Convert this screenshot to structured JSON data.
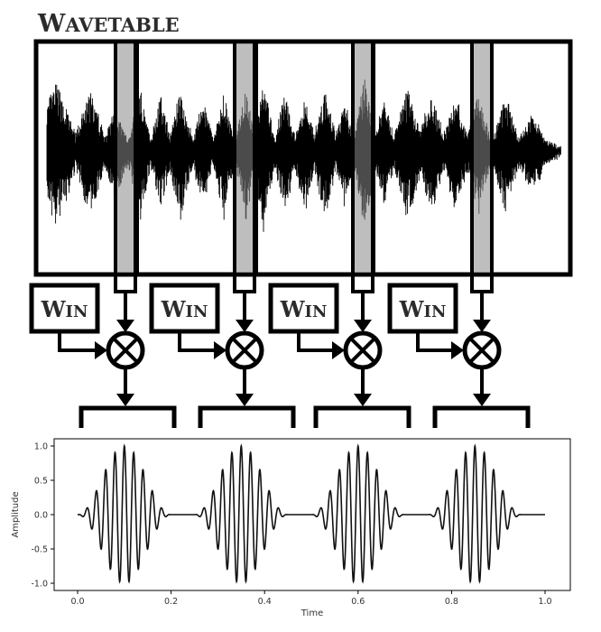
{
  "title": {
    "first_letter": "W",
    "rest": "AVETABLE"
  },
  "windows": [
    {
      "first_letter": "W",
      "rest": "IN"
    },
    {
      "first_letter": "W",
      "rest": "IN"
    },
    {
      "first_letter": "W",
      "rest": "IN"
    },
    {
      "first_letter": "W",
      "rest": "IN"
    }
  ],
  "colors": {
    "ink": "#000000",
    "title": "#2b2b2b",
    "highlight": "#888888"
  },
  "icons": {
    "multiplier": "circle-times-icon",
    "arrow": "arrow-head-icon"
  },
  "chart_data": {
    "type": "line",
    "title": "",
    "xlabel": "Time",
    "ylabel": "Amplitude",
    "xlim": [
      0.0,
      1.0
    ],
    "ylim": [
      -1.0,
      1.0
    ],
    "xticks": [
      "0.0",
      "0.2",
      "0.4",
      "0.6",
      "0.8",
      "1.0"
    ],
    "yticks": [
      "1.0",
      "0.5",
      "0.0",
      "-0.5",
      "-1.0"
    ],
    "grains": [
      {
        "center": 0.1,
        "half_width": 0.1,
        "peak_amplitude": 1.0
      },
      {
        "center": 0.35,
        "half_width": 0.1,
        "peak_amplitude": 1.0
      },
      {
        "center": 0.6,
        "half_width": 0.1,
        "peak_amplitude": 1.0
      },
      {
        "center": 0.85,
        "half_width": 0.1,
        "peak_amplitude": 1.0
      }
    ],
    "oscillations_per_grain": 10,
    "grid": false,
    "legend": "none"
  }
}
